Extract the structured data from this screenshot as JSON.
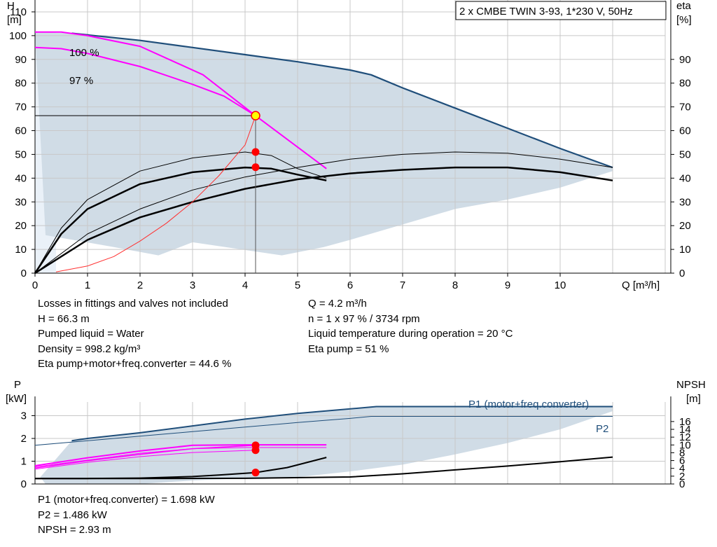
{
  "chart_data": [
    {
      "type": "line",
      "title": "2 x CMBE TWIN 3-93, 1*230 V, 50Hz",
      "xlabel": "Q [m³/h]",
      "ylabel_left": [
        "H",
        "[m]"
      ],
      "ylabel_right": [
        "eta",
        "[%]"
      ],
      "xlim": [
        0,
        12
      ],
      "ylim": [
        0,
        115
      ],
      "xticks": [
        0,
        1,
        2,
        3,
        4,
        5,
        6,
        7,
        8,
        9,
        10
      ],
      "yticks_left": [
        0,
        10,
        20,
        30,
        40,
        50,
        60,
        70,
        80,
        90,
        100,
        110
      ],
      "yticks_right": [
        0,
        10,
        20,
        30,
        40,
        50,
        60,
        70,
        80,
        90
      ],
      "grid": true,
      "series_labels": [
        "100 %",
        "97 %"
      ],
      "envelope": {
        "color": "#d0dce6",
        "upper": [
          [
            0,
            101.5
          ],
          [
            0.7,
            101
          ],
          [
            2,
            98
          ],
          [
            3,
            95
          ],
          [
            4,
            92
          ],
          [
            5,
            89
          ],
          [
            6,
            85.5
          ],
          [
            6.4,
            83.5
          ],
          [
            7,
            78
          ],
          [
            8,
            69.5
          ],
          [
            9,
            61
          ],
          [
            10,
            52.5
          ],
          [
            11,
            44.5
          ]
        ],
        "lower": [
          [
            11,
            43
          ],
          [
            10,
            36
          ],
          [
            9,
            31
          ],
          [
            8,
            27
          ],
          [
            7,
            20.5
          ],
          [
            6,
            14
          ],
          [
            5.5,
            11
          ],
          [
            4.7,
            7.5
          ],
          [
            3,
            13
          ],
          [
            2.35,
            7.5
          ],
          [
            1.5,
            11
          ],
          [
            0.2,
            16
          ]
        ]
      },
      "curves": [
        {
          "kind": "head_100",
          "color": "#1f4e7a",
          "width": 2.2,
          "points": [
            [
              0.7,
              101
            ],
            [
              2,
              98
            ],
            [
              3,
              95
            ],
            [
              4,
              92
            ],
            [
              5,
              89
            ],
            [
              6,
              85.5
            ],
            [
              6.4,
              83.5
            ],
            [
              7,
              78
            ],
            [
              8,
              69.5
            ],
            [
              9,
              61
            ],
            [
              10,
              52.5
            ],
            [
              11,
              44.5
            ]
          ]
        },
        {
          "kind": "head_100_operating",
          "color": "#ff00ff",
          "width": 2,
          "points": [
            [
              0,
              101.5
            ],
            [
              0.5,
              101.5
            ],
            [
              1,
              100
            ],
            [
              2,
              95.5
            ],
            [
              3.2,
              83.5
            ],
            [
              4.2,
              66.3
            ],
            [
              5.55,
              44
            ]
          ]
        },
        {
          "kind": "head_97",
          "color": "#ff00ff",
          "width": 2,
          "points": [
            [
              0,
              95
            ],
            [
              0.5,
              94.5
            ],
            [
              1,
              92.5
            ],
            [
              2,
              87
            ],
            [
              3,
              79.5
            ],
            [
              3.6,
              74.5
            ],
            [
              4.2,
              66.3
            ]
          ]
        },
        {
          "kind": "eta_pump",
          "color": "#000000",
          "width": 1,
          "points": [
            [
              0,
              0
            ],
            [
              0.5,
              19
            ],
            [
              1,
              31
            ],
            [
              2,
              43
            ],
            [
              3,
              48.5
            ],
            [
              4,
              51
            ],
            [
              4.5,
              49.5
            ],
            [
              5,
              44
            ],
            [
              5.55,
              40
            ]
          ]
        },
        {
          "kind": "eta_total",
          "color": "#000000",
          "width": 2.5,
          "points": [
            [
              0,
              0
            ],
            [
              0.5,
              16.5
            ],
            [
              1,
              27
            ],
            [
              2,
              37.5
            ],
            [
              3,
              42.5
            ],
            [
              4,
              44.5
            ],
            [
              4.5,
              44
            ],
            [
              5,
              41.5
            ],
            [
              5.55,
              39
            ]
          ]
        },
        {
          "kind": "eta_pump_twin",
          "color": "#000000",
          "width": 1,
          "points": [
            [
              0,
              0
            ],
            [
              1,
              16.5
            ],
            [
              2,
              27
            ],
            [
              3,
              35
            ],
            [
              4,
              40.5
            ],
            [
              5,
              44.5
            ],
            [
              6,
              48
            ],
            [
              7,
              50
            ],
            [
              8,
              51
            ],
            [
              9,
              50.5
            ],
            [
              10,
              48
            ],
            [
              11,
              44.5
            ]
          ]
        },
        {
          "kind": "eta_total_twin",
          "color": "#000000",
          "width": 2.5,
          "points": [
            [
              0,
              0
            ],
            [
              1,
              14
            ],
            [
              2,
              23.5
            ],
            [
              3,
              30
            ],
            [
              4,
              35.5
            ],
            [
              5,
              39.5
            ],
            [
              6,
              42
            ],
            [
              7,
              43.5
            ],
            [
              8,
              44.5
            ],
            [
              9,
              44.5
            ],
            [
              10,
              42.5
            ],
            [
              11,
              39
            ]
          ]
        },
        {
          "kind": "system_curve",
          "color": "#ff3030",
          "width": 1,
          "points": [
            [
              0.4,
              0.5
            ],
            [
              1,
              3
            ],
            [
              1.5,
              7
            ],
            [
              2,
              13.5
            ],
            [
              2.5,
              21
            ],
            [
              3,
              30
            ],
            [
              3.5,
              41
            ],
            [
              4,
              54
            ],
            [
              4.2,
              66.3
            ]
          ]
        }
      ],
      "operating_line_y": 66.3,
      "operating_x": 4.2,
      "operating_points": [
        [
          4.2,
          66.3,
          "yellow"
        ],
        [
          4.2,
          51,
          "red"
        ],
        [
          4.2,
          44.6,
          "red"
        ]
      ]
    },
    {
      "type": "line",
      "ylabel_left": [
        "P",
        "[kW]"
      ],
      "ylabel_right": [
        "NPSH",
        "[m]"
      ],
      "xlim": [
        0,
        12
      ],
      "ylim": [
        0,
        3.6
      ],
      "yticks_left": [
        0,
        1,
        2,
        3
      ],
      "yticks_right": [
        0,
        2,
        4,
        6,
        8,
        10,
        12,
        14,
        16
      ],
      "npsh_max": 21,
      "grid": true,
      "envelope": {
        "color": "#d0dce6",
        "upper": [
          [
            0.7,
            1.9
          ],
          [
            2,
            2.25
          ],
          [
            3,
            2.55
          ],
          [
            4,
            2.85
          ],
          [
            5,
            3.1
          ],
          [
            6.5,
            3.4
          ],
          [
            11,
            3.4
          ]
        ],
        "lower": [
          [
            11,
            3.2
          ],
          [
            10,
            2.4
          ],
          [
            9,
            1.8
          ],
          [
            8,
            1.3
          ],
          [
            7,
            0.85
          ],
          [
            6,
            0.55
          ],
          [
            5,
            0.3
          ],
          [
            4,
            0.25
          ],
          [
            3,
            0.15
          ],
          [
            2,
            0
          ],
          [
            0.2,
            0
          ],
          [
            0.1,
            0.3
          ]
        ]
      },
      "series": [
        {
          "name": "P1 (motor+freq.converter)",
          "color": "#1f4e7a",
          "width": 2,
          "points": [
            [
              0.7,
              1.9
            ],
            [
              1,
              2
            ],
            [
              2,
              2.25
            ],
            [
              3,
              2.55
            ],
            [
              4,
              2.85
            ],
            [
              5,
              3.1
            ],
            [
              6.5,
              3.4
            ],
            [
              11,
              3.4
            ]
          ]
        },
        {
          "name": "P2",
          "color": "#1f4e7a",
          "width": 1,
          "points": [
            [
              0,
              1.7
            ],
            [
              1,
              1.9
            ],
            [
              2,
              2.1
            ],
            [
              3,
              2.3
            ],
            [
              4,
              2.5
            ],
            [
              5,
              2.7
            ],
            [
              6,
              2.88
            ],
            [
              6.4,
              2.97
            ],
            [
              11,
              2.97
            ]
          ]
        },
        {
          "kind": "p1_operating",
          "color": "#ff00ff",
          "width": 2,
          "points": [
            [
              0,
              0.8
            ],
            [
              1,
              1.15
            ],
            [
              2,
              1.45
            ],
            [
              3,
              1.7
            ],
            [
              4,
              1.72
            ],
            [
              5.55,
              1.72
            ]
          ]
        },
        {
          "kind": "p2_operating",
          "color": "#ff00ff",
          "width": 1,
          "points": [
            [
              0,
              0.75
            ],
            [
              1,
              1.05
            ],
            [
              2,
              1.35
            ],
            [
              3,
              1.55
            ],
            [
              4,
              1.6
            ],
            [
              5.55,
              1.6
            ]
          ]
        },
        {
          "kind": "p1_97",
          "color": "#ff00ff",
          "width": 1.5,
          "points": [
            [
              0,
              0.7
            ],
            [
              1,
              1.02
            ],
            [
              2,
              1.3
            ],
            [
              3,
              1.55
            ],
            [
              4.2,
              1.698
            ]
          ]
        },
        {
          "kind": "p2_97",
          "color": "#ff00ff",
          "width": 1,
          "points": [
            [
              0,
              0.65
            ],
            [
              1,
              0.95
            ],
            [
              2,
              1.2
            ],
            [
              3,
              1.38
            ],
            [
              4.2,
              1.486
            ]
          ]
        },
        {
          "kind": "npsh",
          "color": "#000000",
          "width": 2,
          "axis": "npsh",
          "points": [
            [
              0,
              1.4
            ],
            [
              1,
              1.4
            ],
            [
              2,
              1.5
            ],
            [
              3,
              1.9
            ],
            [
              3.5,
              2.3
            ],
            [
              4.2,
              2.93
            ],
            [
              4.8,
              4.2
            ],
            [
              5.55,
              6.8
            ]
          ]
        },
        {
          "kind": "npsh_twin",
          "color": "#000000",
          "width": 2,
          "axis": "npsh",
          "points": [
            [
              0,
              1.4
            ],
            [
              2,
              1.4
            ],
            [
              4,
              1.45
            ],
            [
              6,
              1.8
            ],
            [
              7,
              2.6
            ],
            [
              8,
              3.6
            ],
            [
              9,
              4.6
            ],
            [
              10,
              5.7
            ],
            [
              11,
              6.9
            ]
          ]
        }
      ],
      "operating_points": [
        [
          4.2,
          1.698,
          "kw"
        ],
        [
          4.2,
          1.486,
          "kw"
        ],
        [
          4.2,
          2.93,
          "npsh"
        ]
      ]
    }
  ],
  "info_top": {
    "left": [
      "Losses in fittings and valves not included",
      "H = 66.3 m",
      "Pumped liquid = Water",
      "Density = 998.2 kg/m³",
      "Eta pump+motor+freq.converter = 44.6 %"
    ],
    "right": [
      "Q = 4.2 m³/h",
      "n = 1 x 97 % / 3734 rpm",
      "Liquid temperature during operation = 20 °C",
      "Eta pump = 51 %"
    ]
  },
  "info_bottom": [
    "P1 (motor+freq.converter) = 1.698 kW",
    "P2 = 1.486 kW",
    "NPSH = 2.93 m"
  ]
}
